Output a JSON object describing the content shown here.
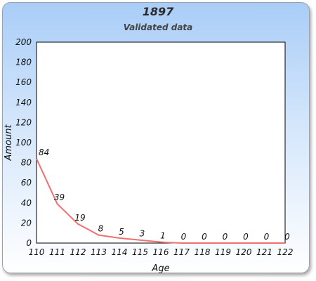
{
  "chart_data": {
    "type": "line",
    "title": "1897",
    "subtitle": "Validated data",
    "xlabel": "Age",
    "ylabel": "Amount",
    "x": [
      110,
      111,
      112,
      113,
      114,
      115,
      116,
      117,
      118,
      119,
      120,
      121,
      122
    ],
    "series": [
      {
        "values": [
          84,
          39,
          19,
          8,
          5,
          3,
          1,
          0,
          0,
          0,
          0,
          0,
          0
        ],
        "color": "#f07070"
      }
    ],
    "ylim": [
      0,
      200
    ],
    "yticks": [
      0,
      20,
      40,
      60,
      80,
      100,
      120,
      140,
      160,
      180,
      200
    ],
    "grid": false,
    "legend": "none",
    "plot_background": "#ffffff"
  }
}
